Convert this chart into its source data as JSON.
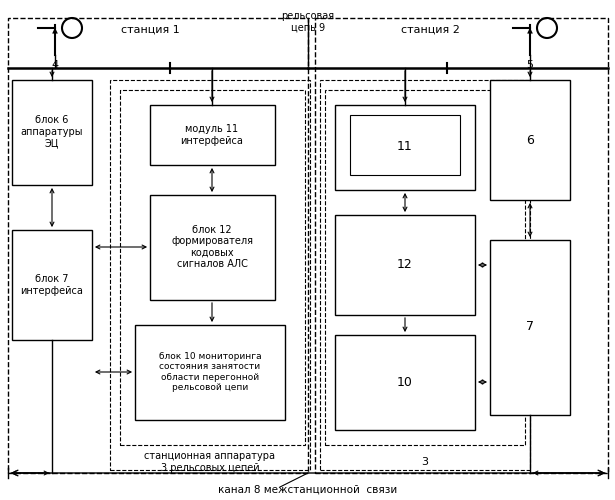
{
  "fig_width": 6.15,
  "fig_height": 5.0,
  "dpi": 100,
  "bg_color": "#ffffff",
  "station1_label": "станция 1",
  "station2_label": "станция 2",
  "relsovaya_label": "рельсовая\nцепь 9",
  "kanal_label": "канал 8 межстанционной  связи",
  "block6_left_label": "блок 6\nаппаратуры\nЭЦ",
  "block7_left_label": "блок 7\nинтерфейса",
  "block11_left_label": "модуль 11\nинтерфейса",
  "block12_left_label": "блок 12\nформирователя\nкодовых\nсигналов АЛС",
  "block10_left_label": "блок 10 мониторинга\nсостояния занятости\nобласти перегонной\nрельсовой цепи",
  "station3_label": "станционная аппаратура\n3 рельсовых цепей",
  "block11_right_label": "11",
  "block12_right_label": "12",
  "block10_right_label": "10",
  "block3_label": "3",
  "block6_right_label": "6",
  "block7_right_label": "7",
  "label4": "4",
  "label5": "5"
}
